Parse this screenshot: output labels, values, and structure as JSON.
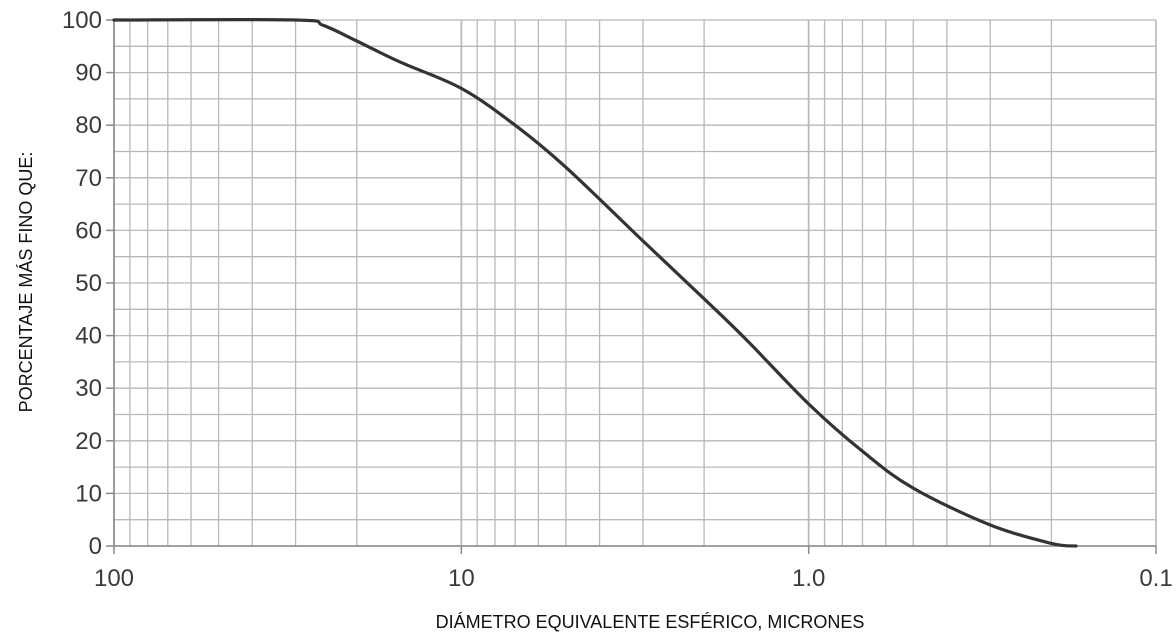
{
  "chart_data": {
    "type": "line",
    "title": "",
    "xlabel": "DIÁMETRO EQUIVALENTE ESFÉRICO, MICRONES",
    "ylabel": "PORCENTAJE MÁS FINO QUE:",
    "x_scale": "log",
    "x_reversed": true,
    "xlim": [
      100,
      0.1
    ],
    "ylim": [
      0,
      100
    ],
    "grid": true,
    "x_ticks": [
      {
        "value": 100,
        "label": "100"
      },
      {
        "value": 10,
        "label": "10"
      },
      {
        "value": 1,
        "label": "1.0"
      },
      {
        "value": 0.1,
        "label": "0.1"
      }
    ],
    "y_ticks": [
      {
        "value": 0,
        "label": "0"
      },
      {
        "value": 10,
        "label": "10"
      },
      {
        "value": 20,
        "label": "20"
      },
      {
        "value": 30,
        "label": "30"
      },
      {
        "value": 40,
        "label": "40"
      },
      {
        "value": 50,
        "label": "50"
      },
      {
        "value": 60,
        "label": "60"
      },
      {
        "value": 70,
        "label": "70"
      },
      {
        "value": 80,
        "label": "80"
      },
      {
        "value": 90,
        "label": "90"
      },
      {
        "value": 100,
        "label": "100"
      }
    ],
    "series": [
      {
        "x": [
          100,
          30,
          25,
          20,
          15,
          10,
          7,
          5,
          3,
          2,
          1.5,
          1.0,
          0.7,
          0.5,
          0.3,
          0.2,
          0.17
        ],
        "y": [
          100,
          100,
          99,
          96,
          92,
          87,
          80,
          72,
          58,
          47,
          39,
          27,
          18,
          11,
          4,
          0.5,
          0
        ]
      }
    ],
    "colors": {
      "line": "#333333",
      "grid": "#b8b8b8",
      "axis": "#888888",
      "tick_text": "#3a3a3a"
    }
  }
}
